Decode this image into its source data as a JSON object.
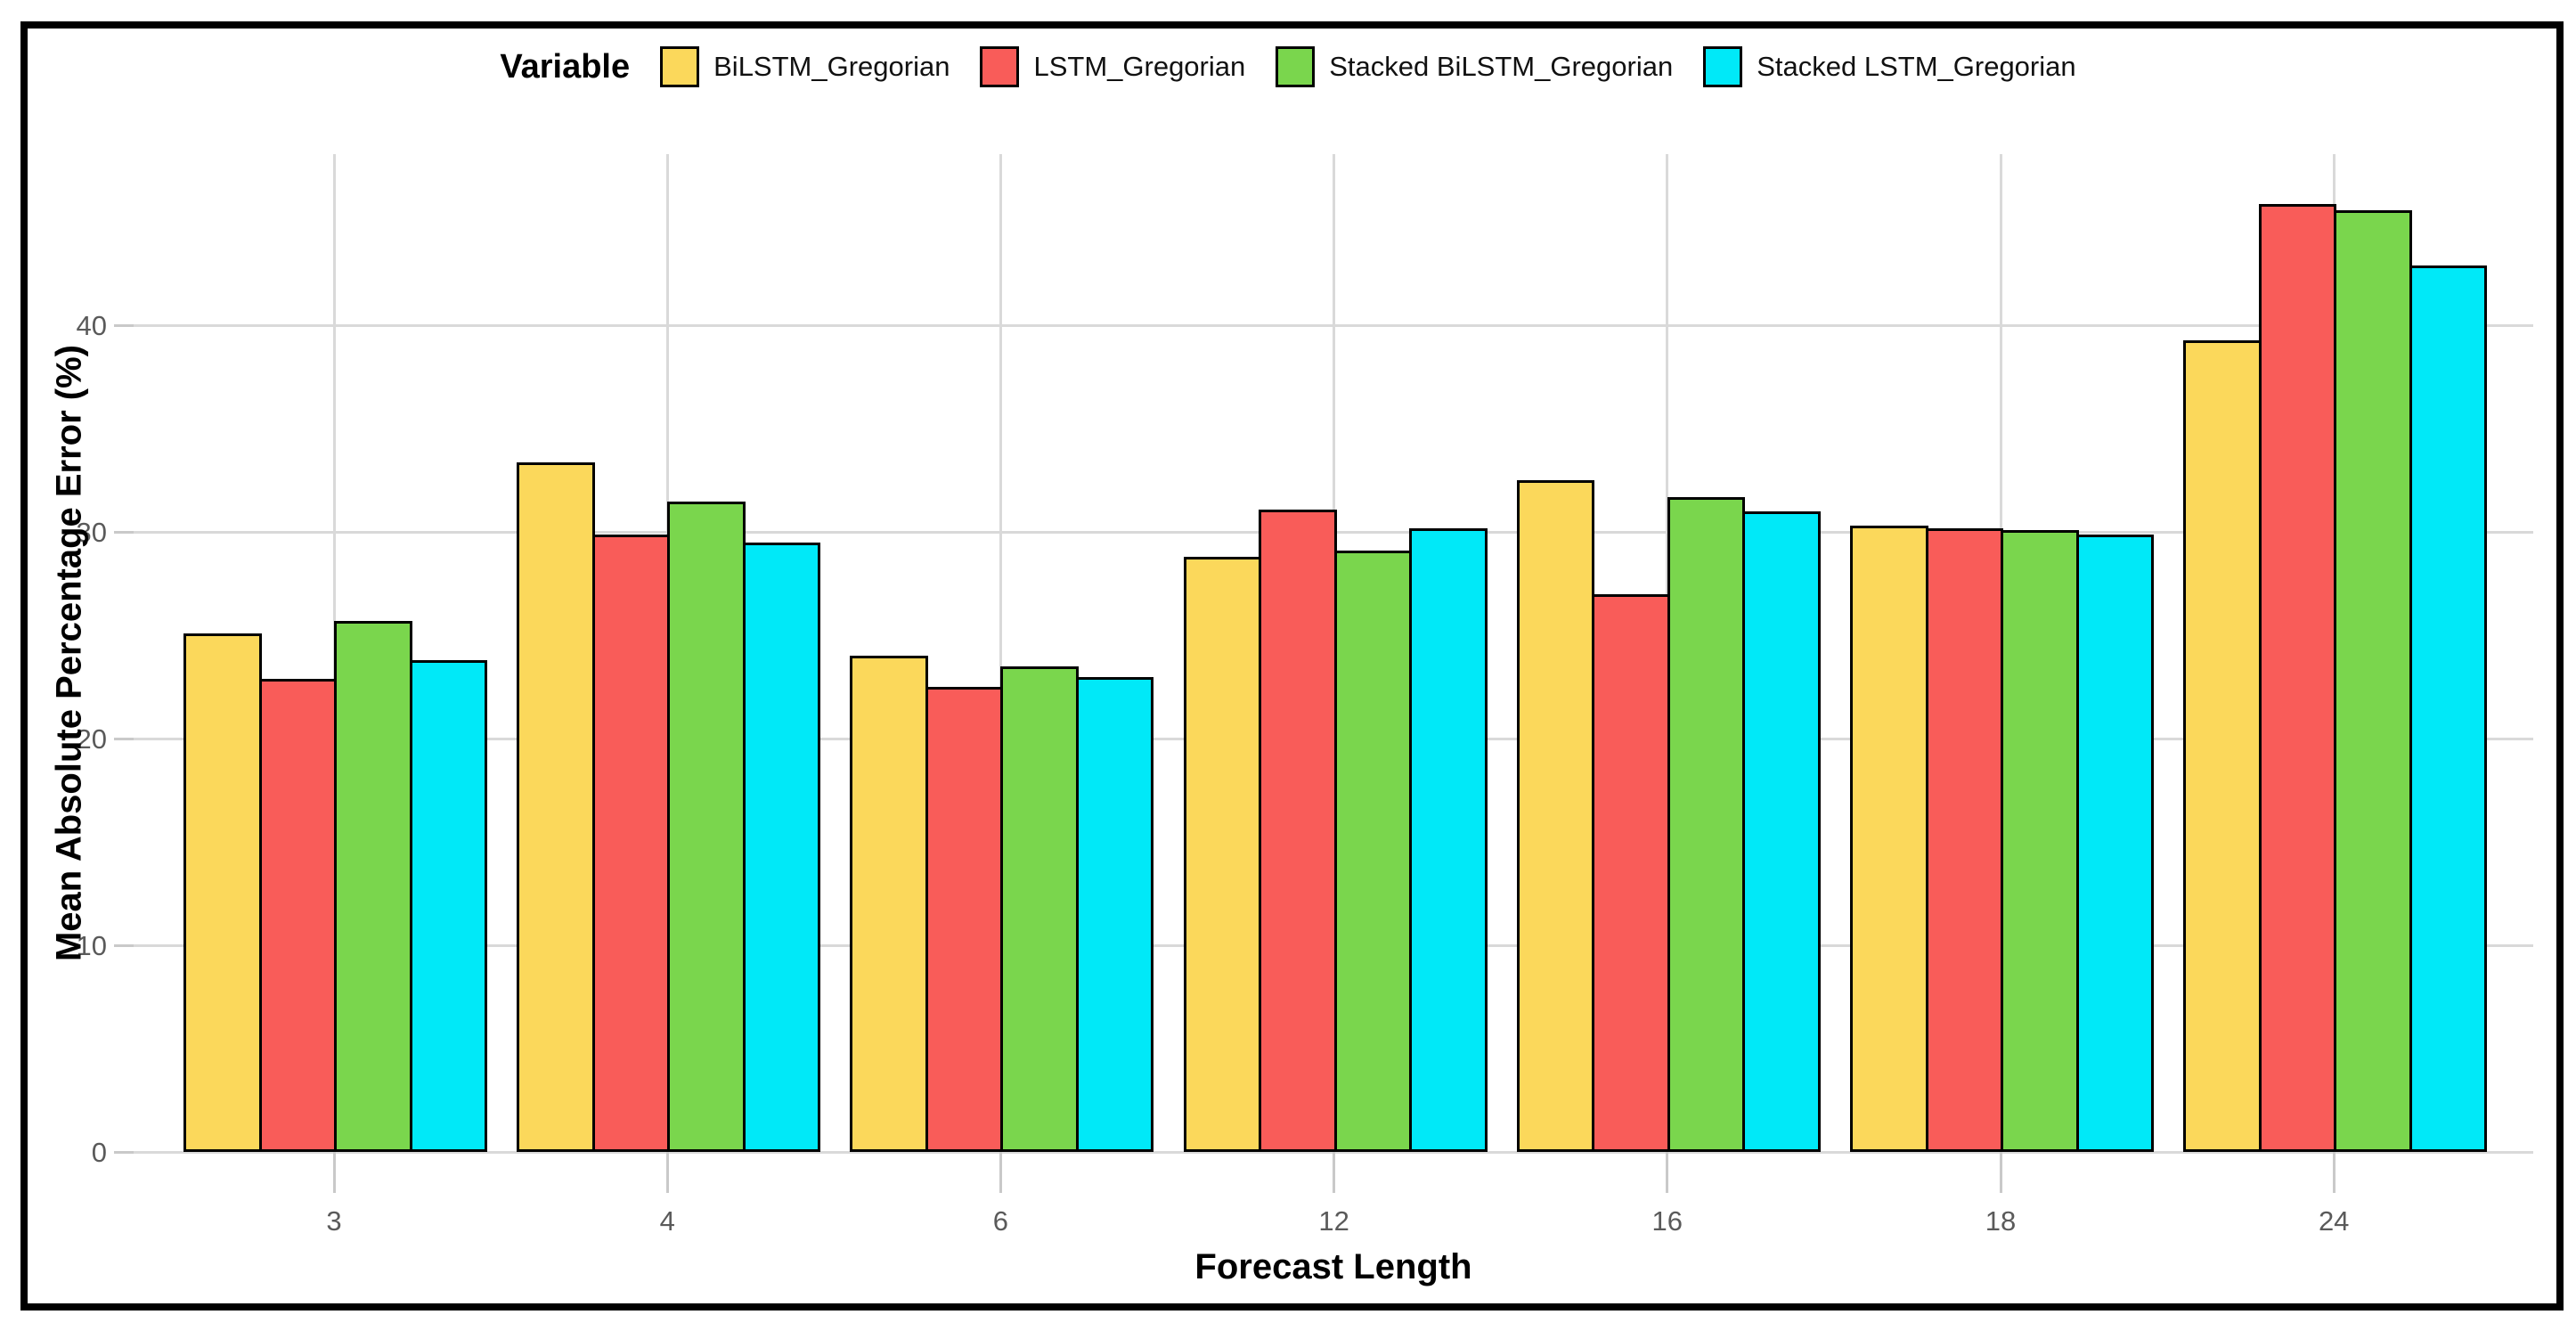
{
  "chart_data": {
    "type": "bar",
    "legend_title": "Variable",
    "legend_position": "top",
    "grid": true,
    "xlabel": "Forecast Length",
    "ylabel": "Mean Absolute Percentage Error (%)",
    "categories": [
      "3",
      "4",
      "6",
      "12",
      "16",
      "18",
      "24"
    ],
    "series": [
      {
        "name": "BiLSTM_Gregorian",
        "color": "#FBD85B",
        "values": [
          25.1,
          33.4,
          24.0,
          28.8,
          32.5,
          30.3,
          39.3
        ]
      },
      {
        "name": "LSTM_Gregorian",
        "color": "#F95C59",
        "values": [
          22.9,
          29.9,
          22.5,
          31.1,
          27.0,
          30.2,
          45.9
        ]
      },
      {
        "name": "Stacked BiLSTM_Gregorian",
        "color": "#7AD64D",
        "values": [
          25.7,
          31.5,
          23.5,
          29.1,
          31.7,
          30.1,
          45.6
        ]
      },
      {
        "name": "Stacked LSTM_Gregorian",
        "color": "#00E9F8",
        "values": [
          23.8,
          29.5,
          23.0,
          30.2,
          31.0,
          29.9,
          42.9
        ]
      }
    ],
    "yticks": [
      0,
      10,
      20,
      30,
      40
    ],
    "ylim": [
      0,
      48.3
    ],
    "colors": {
      "gridline": "#d9d9d9",
      "tick_mark": "#c9c9c9",
      "tick_label": "#5a5a5a",
      "bar_border": "#000000",
      "outer_border": "#000000",
      "background": "#ffffff"
    }
  }
}
